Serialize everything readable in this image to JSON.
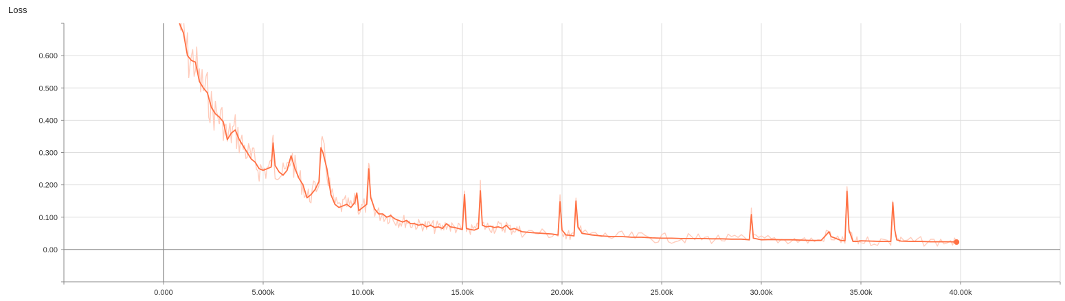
{
  "chart_data": {
    "type": "line",
    "title": "Loss",
    "xlabel": "",
    "ylabel": "",
    "xlim": [
      -5000,
      45000
    ],
    "ylim": [
      -0.1,
      0.7
    ],
    "x_ticks": [
      0,
      5000,
      10000,
      15000,
      20000,
      25000,
      30000,
      35000,
      40000
    ],
    "x_tick_labels": [
      "0.000",
      "5.000k",
      "10.00k",
      "15.00k",
      "20.00k",
      "25.00k",
      "30.00k",
      "35.00k",
      "40.00k"
    ],
    "y_ticks": [
      0.0,
      0.1,
      0.2,
      0.3,
      0.4,
      0.5,
      0.6
    ],
    "y_tick_labels": [
      "0.00",
      "0.100",
      "0.200",
      "0.300",
      "0.400",
      "0.500",
      "0.600"
    ],
    "grid": true,
    "colors": {
      "smoothed": "#ff7043",
      "raw": "#ffccbc"
    },
    "series": [
      {
        "x": [
          800,
          1000,
          1200,
          1400,
          1600,
          1800,
          2000,
          2200,
          2400,
          2600,
          2800,
          3000,
          3200,
          3400,
          3600,
          3800,
          4000,
          4200,
          4400,
          4600,
          4800,
          5000,
          5200,
          5400,
          5500,
          5600,
          5800,
          6000,
          6200,
          6400,
          6600,
          6800,
          7000,
          7200,
          7400,
          7600,
          7800,
          7900,
          8000,
          8200,
          8400,
          8600,
          8800,
          9000,
          9200,
          9400,
          9600,
          9700,
          9800,
          10000,
          10200,
          10300,
          10400,
          10600,
          10800,
          11000,
          11200,
          11400,
          11600,
          11800,
          12000,
          12200,
          12400,
          12600,
          12800,
          13000,
          13200,
          13400,
          13600,
          13800,
          14000,
          14200,
          14400,
          14600,
          14800,
          15000,
          15100,
          15200,
          15400,
          15600,
          15800,
          15900,
          16000,
          16200,
          16400,
          16600,
          16800,
          17000,
          17200,
          17400,
          17600,
          17800,
          18000,
          18500,
          19000,
          19500,
          19800,
          19900,
          20000,
          20200,
          20400,
          20600,
          20700,
          20800,
          21000,
          21500,
          22000,
          22500,
          23000,
          23500,
          24000,
          24500,
          25000,
          25500,
          26000,
          26500,
          27000,
          27500,
          28000,
          28500,
          29000,
          29400,
          29500,
          29600,
          30000,
          30500,
          31000,
          31500,
          32000,
          32500,
          33000,
          33400,
          33500,
          34000,
          34200,
          34300,
          34400,
          34600,
          34800,
          35000,
          35500,
          36000,
          36500,
          36600,
          36700,
          36800,
          37000,
          37500,
          38000,
          38500,
          39000,
          39500,
          39800
        ],
        "values": [
          0.7,
          0.67,
          0.6,
          0.585,
          0.58,
          0.52,
          0.5,
          0.485,
          0.44,
          0.42,
          0.41,
          0.395,
          0.34,
          0.36,
          0.37,
          0.34,
          0.32,
          0.3,
          0.28,
          0.27,
          0.25,
          0.245,
          0.25,
          0.255,
          0.33,
          0.26,
          0.24,
          0.23,
          0.245,
          0.29,
          0.25,
          0.22,
          0.2,
          0.16,
          0.17,
          0.185,
          0.21,
          0.315,
          0.3,
          0.25,
          0.17,
          0.14,
          0.13,
          0.135,
          0.14,
          0.13,
          0.145,
          0.175,
          0.12,
          0.13,
          0.14,
          0.25,
          0.16,
          0.125,
          0.11,
          0.11,
          0.1,
          0.105,
          0.095,
          0.09,
          0.085,
          0.09,
          0.08,
          0.08,
          0.075,
          0.078,
          0.07,
          0.075,
          0.068,
          0.07,
          0.065,
          0.08,
          0.07,
          0.068,
          0.065,
          0.062,
          0.17,
          0.065,
          0.062,
          0.06,
          0.065,
          0.182,
          0.075,
          0.07,
          0.072,
          0.068,
          0.07,
          0.066,
          0.075,
          0.062,
          0.065,
          0.06,
          0.055,
          0.052,
          0.05,
          0.048,
          0.045,
          0.148,
          0.06,
          0.045,
          0.044,
          0.042,
          0.15,
          0.07,
          0.05,
          0.045,
          0.042,
          0.04,
          0.04,
          0.038,
          0.038,
          0.036,
          0.035,
          0.035,
          0.034,
          0.034,
          0.034,
          0.033,
          0.033,
          0.032,
          0.032,
          0.03,
          0.108,
          0.035,
          0.03,
          0.031,
          0.03,
          0.03,
          0.029,
          0.028,
          0.028,
          0.055,
          0.04,
          0.028,
          0.027,
          0.18,
          0.06,
          0.025,
          0.025,
          0.027,
          0.026,
          0.025,
          0.025,
          0.145,
          0.06,
          0.03,
          0.026,
          0.025,
          0.025,
          0.024,
          0.024,
          0.024,
          0.023
        ]
      }
    ]
  }
}
